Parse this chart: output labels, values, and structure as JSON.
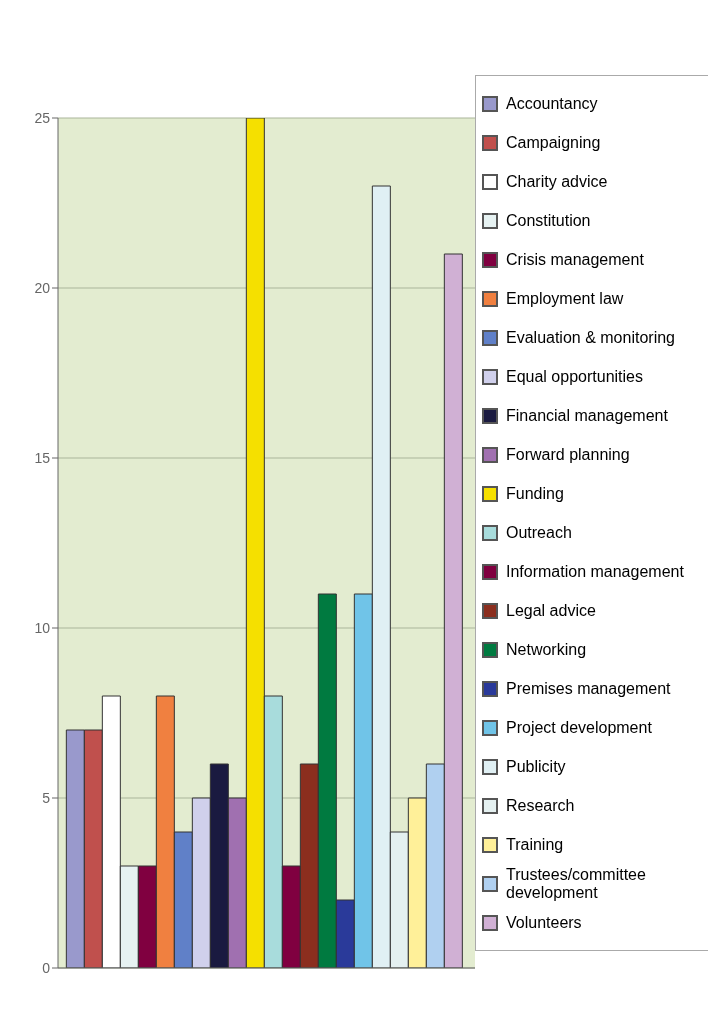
{
  "chart_data": {
    "type": "bar",
    "categories": [
      null
    ],
    "series": [
      {
        "name": "Accountancy",
        "color": "#9999cc",
        "values": [
          7
        ]
      },
      {
        "name": "Campaigning",
        "color": "#c0504d",
        "values": [
          7
        ]
      },
      {
        "name": "Charity advice",
        "color": "#ffffff",
        "values": [
          8
        ]
      },
      {
        "name": "Constitution",
        "color": "#e6f2f2",
        "values": [
          3
        ]
      },
      {
        "name": "Crisis management",
        "color": "#800040",
        "values": [
          3
        ]
      },
      {
        "name": "Employment law",
        "color": "#f08040",
        "values": [
          8
        ]
      },
      {
        "name": "Evaluation & monitoring",
        "color": "#6080c8",
        "values": [
          4
        ]
      },
      {
        "name": "Equal opportunities",
        "color": "#d0d0ec",
        "values": [
          5
        ]
      },
      {
        "name": "Financial management",
        "color": "#1a1a40",
        "values": [
          6
        ]
      },
      {
        "name": "Forward planning",
        "color": "#a070b0",
        "values": [
          5
        ]
      },
      {
        "name": "Funding",
        "color": "#f5e000",
        "values": [
          25
        ]
      },
      {
        "name": "Outreach",
        "color": "#a8dcdc",
        "values": [
          8
        ]
      },
      {
        "name": "Information management",
        "color": "#800040",
        "values": [
          3
        ]
      },
      {
        "name": "Legal advice",
        "color": "#8b2e1e",
        "values": [
          6
        ]
      },
      {
        "name": "Networking",
        "color": "#007a40",
        "values": [
          11
        ]
      },
      {
        "name": "Premises management",
        "color": "#2a3a9a",
        "values": [
          2
        ]
      },
      {
        "name": "Project development",
        "color": "#70c4e8",
        "values": [
          11
        ]
      },
      {
        "name": "Publicity",
        "color": "#e0f0f4",
        "values": [
          23
        ]
      },
      {
        "name": "Research",
        "color": "#e4f0f0",
        "values": [
          4
        ]
      },
      {
        "name": "Training",
        "color": "#fff099",
        "values": [
          5
        ]
      },
      {
        "name": "Trustees/committee development",
        "color": "#b0d0f0",
        "values": [
          6
        ]
      },
      {
        "name": "Volunteers",
        "color": "#d0b0d4",
        "values": [
          21
        ]
      }
    ],
    "ylim": [
      0,
      25
    ],
    "yticks": [
      0,
      5,
      10,
      15,
      20,
      25
    ],
    "grid": "y",
    "legend": "right"
  }
}
